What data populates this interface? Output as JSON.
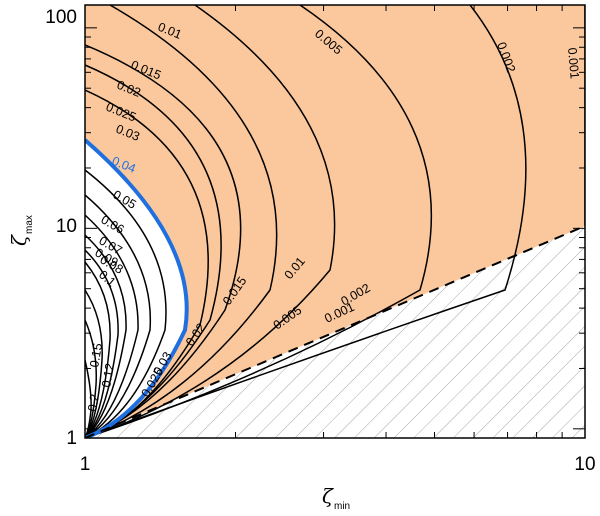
{
  "chart_data": {
    "type": "contour",
    "x_scale": "log",
    "y_scale": "log",
    "xlim": [
      1,
      10
    ],
    "ylim": [
      0.9,
      130
    ],
    "x_ticks": [
      {
        "value": 1,
        "label": "1"
      },
      {
        "value": 10,
        "label": "10"
      }
    ],
    "y_ticks": [
      {
        "value": 1,
        "label": "1"
      },
      {
        "value": 10,
        "label": "10"
      },
      {
        "value": 100,
        "label": "100"
      }
    ],
    "xlabel": {
      "symbol": "ζ",
      "subscript": "min"
    },
    "ylabel": {
      "symbol": "ζ",
      "subscript": "max"
    },
    "colors": {
      "shaded": "#fbc89d",
      "highlight": "#1f6fe0",
      "line": "#000000",
      "hatch": "#a6a6a6"
    },
    "shaded_region": {
      "description": "beyond the 0.04 contour",
      "below_level": 0.04
    },
    "excluded_region": {
      "boundary": "zeta_max = zeta_min",
      "style": "hatched"
    },
    "highlight_level": 0.04,
    "contour_levels": [
      0.2,
      0.15,
      0.12,
      0.1,
      0.09,
      0.08,
      0.07,
      0.06,
      0.05,
      0.04,
      0.03,
      0.025,
      0.02,
      0.015,
      0.01,
      0.005,
      0.002,
      0.001
    ],
    "contour_labels": [
      {
        "text": "0.01",
        "level": 0.01,
        "rotation": 22
      },
      {
        "text": "0.015",
        "level": 0.015,
        "rotation": 22
      },
      {
        "text": "0.02",
        "level": 0.02,
        "rotation": 22
      },
      {
        "text": "0.025",
        "level": 0.025,
        "rotation": 22
      },
      {
        "text": "0.03",
        "level": 0.03,
        "rotation": 22
      },
      {
        "text": "0.04",
        "level": 0.04,
        "rotation": 22
      },
      {
        "text": "0.05",
        "level": 0.05,
        "rotation": 30
      },
      {
        "text": "0.06",
        "level": 0.06,
        "rotation": 30
      },
      {
        "text": "0.07",
        "level": 0.07,
        "rotation": 30
      },
      {
        "text": "0.08",
        "level": 0.08,
        "rotation": 30
      },
      {
        "text": "0.09",
        "level": 0.09,
        "rotation": 30
      },
      {
        "text": "0.1",
        "level": 0.1,
        "rotation": 40
      },
      {
        "text": "0.12",
        "level": 0.12,
        "rotation": -80
      },
      {
        "text": "0.15",
        "level": 0.15,
        "rotation": -80
      },
      {
        "text": "0.2",
        "level": 0.2,
        "rotation": -80
      },
      {
        "text": "0.005",
        "level": 0.005,
        "rotation": 40
      },
      {
        "text": "0.002",
        "level": 0.002,
        "rotation": 70
      },
      {
        "text": "0.001",
        "level": 0.001,
        "rotation": 85
      },
      {
        "text": "0.015",
        "level": 0.015,
        "rotation": -55
      },
      {
        "text": "0.01",
        "level": 0.01,
        "rotation": -50
      },
      {
        "text": "0.02",
        "level": 0.02,
        "rotation": -55
      },
      {
        "text": "0.005",
        "level": 0.005,
        "rotation": -35
      },
      {
        "text": "0.002",
        "level": 0.002,
        "rotation": -30
      },
      {
        "text": "0.001",
        "level": 0.001,
        "rotation": -25
      },
      {
        "text": "0.03",
        "level": 0.03,
        "rotation": -60
      },
      {
        "text": "0.025",
        "level": 0.025,
        "rotation": -60
      }
    ]
  }
}
